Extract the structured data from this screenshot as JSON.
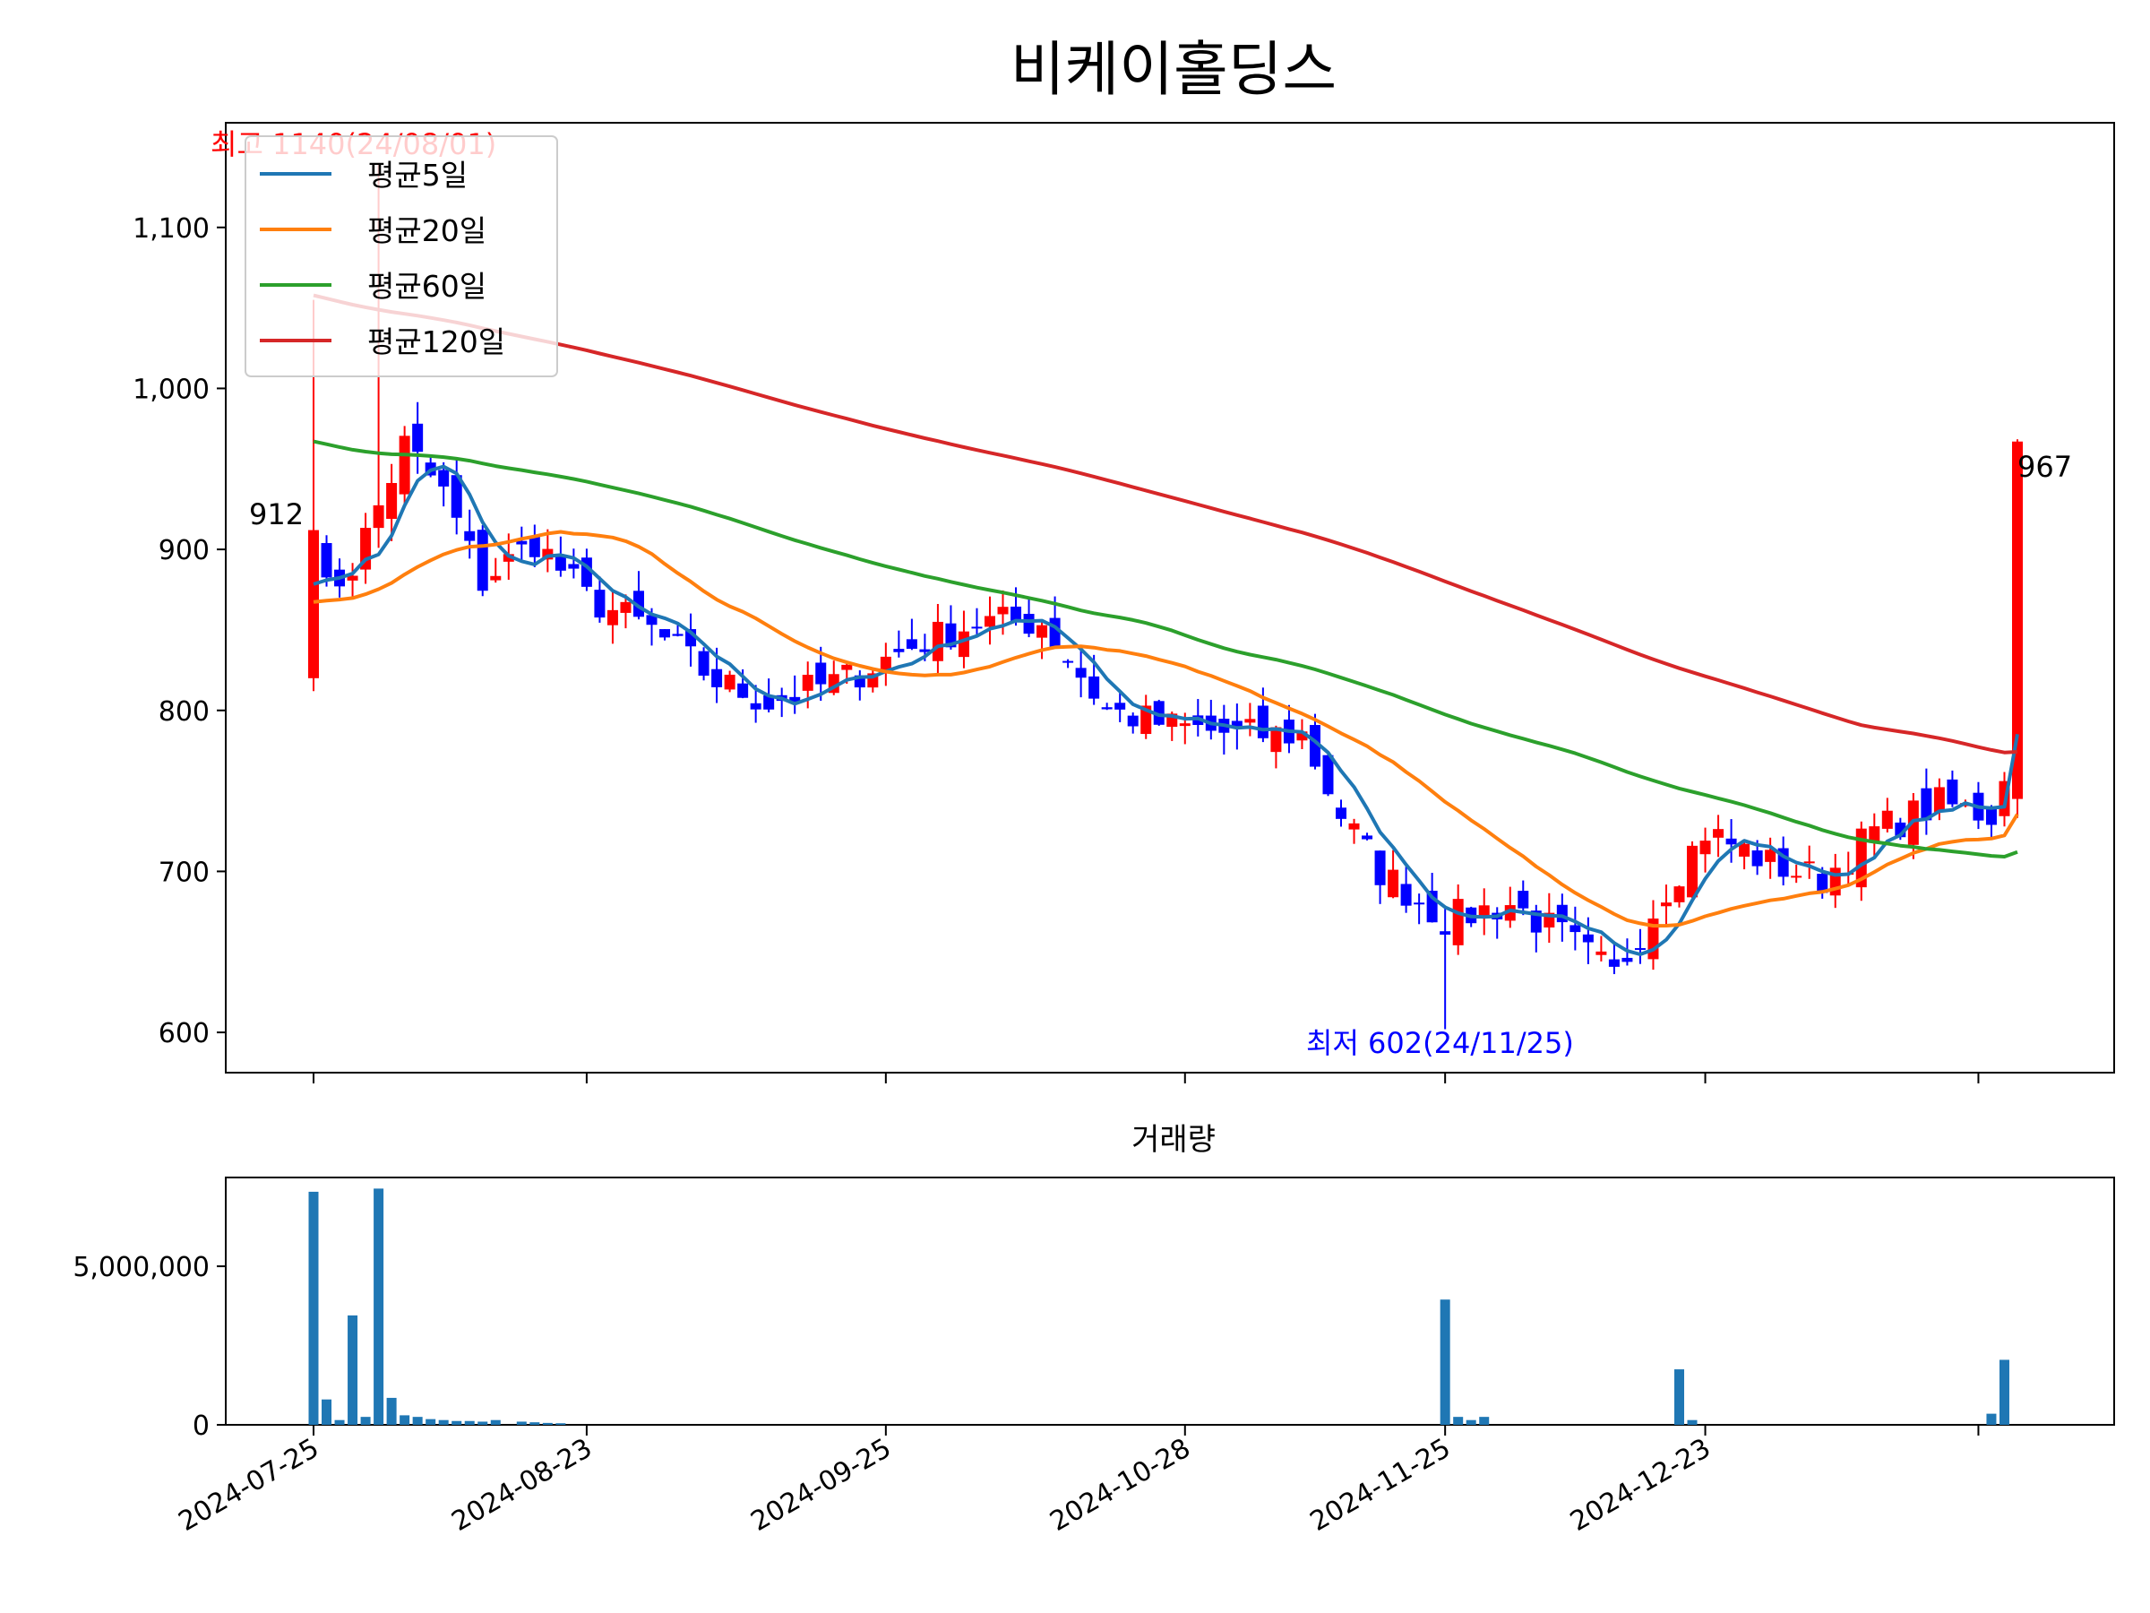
{
  "chart_data": [
    {
      "type": "candlestick",
      "title": "비케이홀딩스",
      "ylim": [
        575,
        1165
      ],
      "yticks": [
        600,
        700,
        800,
        900,
        1000,
        1100
      ],
      "ytick_labels": [
        "600",
        "700",
        "800",
        "900",
        "1,000",
        "1,100"
      ],
      "grid": false,
      "legend_position": "top-left",
      "series": [
        {
          "name": "평균5일",
          "color": "#1f77b4"
        },
        {
          "name": "평균20일",
          "color": "#ff7f0e"
        },
        {
          "name": "평균60일",
          "color": "#2ca02c"
        },
        {
          "name": "평균120일",
          "color": "#d62728"
        }
      ],
      "annotations": {
        "high": "최고 1140(24/08/01)",
        "low": "최저 602(24/11/25)",
        "first_close": "912",
        "last_close": "967"
      },
      "up_color": "#ff0000",
      "down_color": "#0000ff"
    },
    {
      "type": "bar",
      "title": "거래량",
      "ylim": [
        0,
        7800000
      ],
      "yticks": [
        0,
        5000000
      ],
      "ytick_labels": [
        "0",
        "5,000,000"
      ],
      "color": "#1f77b4",
      "x": [
        "2024-07-25",
        "2024-07-26",
        "2024-07-29",
        "2024-07-30",
        "2024-07-31",
        "2024-08-01",
        "2024-08-02",
        "2024-08-05",
        "2024-08-06",
        "2024-08-07",
        "2024-08-08",
        "2024-08-09",
        "2024-08-12",
        "2024-08-13",
        "2024-08-14",
        "2024-08-16",
        "2024-08-19",
        "2024-08-20",
        "2024-08-21",
        "2024-11-25",
        "2024-11-26",
        "2024-11-27",
        "2024-11-28",
        "2024-12-19",
        "2024-12-20",
        "2025-01-22",
        "2025-01-23"
      ],
      "values": [
        7350000,
        800000,
        150000,
        3450000,
        250000,
        7450000,
        850000,
        300000,
        250000,
        180000,
        150000,
        120000,
        120000,
        100000,
        150000,
        100000,
        80000,
        60000,
        50000,
        3950000,
        250000,
        150000,
        250000,
        1750000,
        150000,
        350000,
        2050000
      ]
    }
  ],
  "x_axis": {
    "tick_labels": [
      "2024-07-25",
      "2024-08-23",
      "2024-09-25",
      "2024-10-28",
      "2024-11-25",
      "2024-12-23"
    ]
  }
}
